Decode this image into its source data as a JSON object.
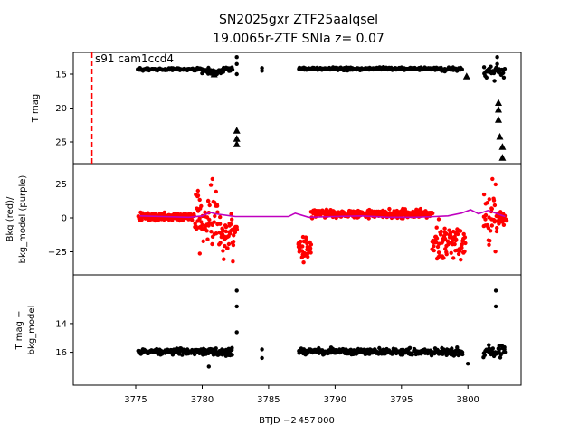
{
  "chart_data": {
    "type": "scatter",
    "title_line1": "SN2025gxr  ZTF25aalqsel",
    "title_line2": "19.0065r-ZTF SNIa z= 0.07",
    "xlabel": "BTJD −2 457 000",
    "xlim": [
      3770.3,
      3804.0
    ],
    "xticks": [
      3775,
      3780,
      3785,
      3790,
      3795,
      3800
    ],
    "annotation": "s91 cam1ccd4",
    "vline_x": 3771.7,
    "colors": {
      "points": "#000000",
      "bkg": "#ff0000",
      "model": "#bf00bf",
      "vline": "#ff0000"
    },
    "panels": [
      {
        "id": "top",
        "ylabel": "T mag",
        "ylim": [
          28.2,
          11.8
        ],
        "yticks": [
          15,
          20,
          25
        ],
        "segments": [
          {
            "x0": 3775.2,
            "x1": 3780.0,
            "y": 14.3,
            "spread": 0.35
          },
          {
            "x0": 3780.0,
            "x1": 3781.6,
            "y": 14.5,
            "spread": 0.7
          },
          {
            "x0": 3781.6,
            "x1": 3782.3,
            "y": 14.3,
            "spread": 0.6
          },
          {
            "x0": 3787.3,
            "x1": 3798.0,
            "y": 14.2,
            "spread": 0.35
          },
          {
            "x0": 3798.0,
            "x1": 3799.6,
            "y": 14.3,
            "spread": 0.5
          },
          {
            "x0": 3801.2,
            "x1": 3802.8,
            "y": 14.6,
            "spread": 1.0
          }
        ],
        "extra_points": [
          {
            "x": 3782.6,
            "y": 12.5
          },
          {
            "x": 3782.6,
            "y": 13.5
          },
          {
            "x": 3782.6,
            "y": 15.0
          },
          {
            "x": 3784.5,
            "y": 14.5
          },
          {
            "x": 3784.5,
            "y": 14.1
          },
          {
            "x": 3802.2,
            "y": 12.5
          },
          {
            "x": 3802.2,
            "y": 13.5
          },
          {
            "x": 3801.4,
            "y": 15.5
          },
          {
            "x": 3802.0,
            "y": 16.0
          },
          {
            "x": 3802.7,
            "y": 15.5
          }
        ],
        "triangles": [
          {
            "x": 3782.6,
            "y": 23.3
          },
          {
            "x": 3782.6,
            "y": 24.5
          },
          {
            "x": 3782.6,
            "y": 25.3
          },
          {
            "x": 3780.9,
            "y": 15.0
          },
          {
            "x": 3799.9,
            "y": 15.3
          },
          {
            "x": 3802.3,
            "y": 19.2
          },
          {
            "x": 3802.3,
            "y": 20.2
          },
          {
            "x": 3802.3,
            "y": 21.7
          },
          {
            "x": 3802.4,
            "y": 24.2
          },
          {
            "x": 3802.6,
            "y": 25.7
          },
          {
            "x": 3802.6,
            "y": 27.3
          }
        ]
      },
      {
        "id": "middle",
        "ylabel_line1": "Bkg (red)/",
        "ylabel_line2": "bkg_model (purple)",
        "ylim": [
          -42,
          40
        ],
        "yticks": [
          -25,
          0,
          25
        ],
        "bkg_segments": [
          {
            "x0": 3775.2,
            "x1": 3779.4,
            "base": 1.0,
            "spread": 5
          },
          {
            "x0": 3779.4,
            "x1": 3781.2,
            "base": 0,
            "spread": 38
          },
          {
            "x0": 3781.2,
            "x1": 3782.6,
            "base": -12,
            "spread": 26
          },
          {
            "x0": 3787.2,
            "x1": 3788.2,
            "base": -22,
            "spread": 16
          },
          {
            "x0": 3788.2,
            "x1": 3797.3,
            "base": 3,
            "spread": 5
          },
          {
            "x0": 3797.3,
            "x1": 3799.8,
            "base": -18,
            "spread": 22
          },
          {
            "x0": 3801.2,
            "x1": 3802.2,
            "base": 0,
            "spread": 38
          },
          {
            "x0": 3802.2,
            "x1": 3802.9,
            "base": 0,
            "spread": 8
          }
        ],
        "model": {
          "x": [
            3775.3,
            3777.0,
            3779.0,
            3780.0,
            3780.6,
            3781.0,
            3782.5,
            3784.0,
            3786.5,
            3787.0,
            3788.0,
            3790.0,
            3792.0,
            3794.0,
            3796.0,
            3797.5,
            3798.5,
            3799.5,
            3800.2,
            3800.8,
            3801.5,
            3802.5,
            3802.8
          ],
          "y": [
            1.5,
            1.0,
            0.5,
            1.5,
            4.0,
            3.0,
            1.0,
            1.0,
            1.0,
            3.5,
            0.5,
            1.0,
            1.5,
            0.5,
            0.5,
            1.0,
            1.5,
            3.5,
            6.0,
            3.0,
            5.5,
            2.0,
            1.0
          ]
        }
      },
      {
        "id": "bottom",
        "ylabel_line1": "T mag −",
        "ylabel_line2": "bkg_model",
        "ylim": [
          18.3,
          10.6
        ],
        "yticks": [
          14,
          16
        ],
        "segments": [
          {
            "x0": 3775.2,
            "x1": 3780.0,
            "y": 15.95,
            "spread": 0.35
          },
          {
            "x0": 3780.0,
            "x1": 3782.3,
            "y": 16.0,
            "spread": 0.5
          },
          {
            "x0": 3787.3,
            "x1": 3797.8,
            "y": 15.95,
            "spread": 0.35
          },
          {
            "x0": 3797.8,
            "x1": 3799.6,
            "y": 16.0,
            "spread": 0.5
          },
          {
            "x0": 3801.2,
            "x1": 3802.8,
            "y": 16.0,
            "spread": 0.6
          }
        ],
        "extra_points": [
          {
            "x": 3782.6,
            "y": 11.7
          },
          {
            "x": 3782.6,
            "y": 12.8
          },
          {
            "x": 3782.6,
            "y": 14.6
          },
          {
            "x": 3784.5,
            "y": 15.8
          },
          {
            "x": 3784.5,
            "y": 16.4
          },
          {
            "x": 3802.1,
            "y": 11.7
          },
          {
            "x": 3802.1,
            "y": 12.8
          },
          {
            "x": 3780.5,
            "y": 17.0
          },
          {
            "x": 3800.0,
            "y": 16.8
          }
        ]
      }
    ]
  }
}
